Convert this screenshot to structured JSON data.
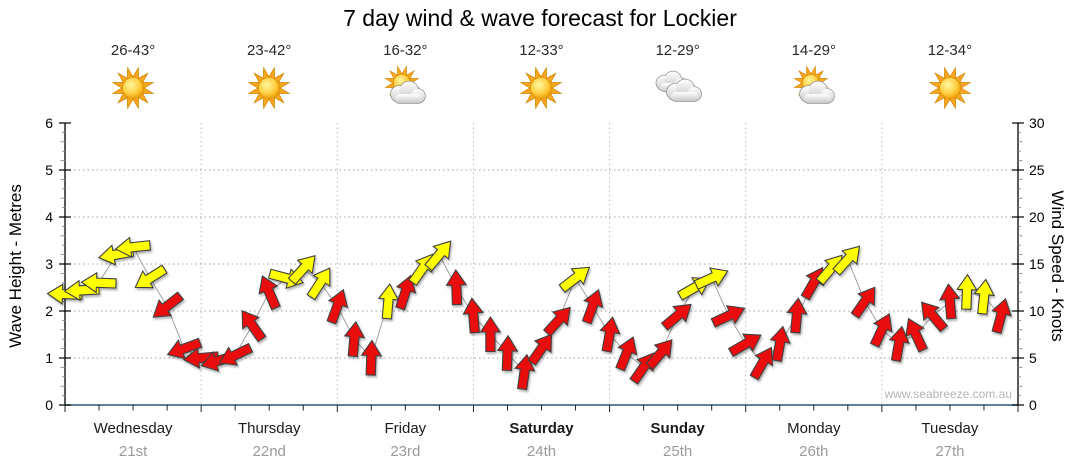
{
  "title": "7 day wind & wave forecast for Lockier",
  "watermark": "www.seabreeze.com.au",
  "days": [
    {
      "name": "Wednesday",
      "date": "21st",
      "temp": "26-43°",
      "icon": "sunny",
      "bold": false
    },
    {
      "name": "Thursday",
      "date": "22nd",
      "temp": "23-42°",
      "icon": "sunny",
      "bold": false
    },
    {
      "name": "Friday",
      "date": "23rd",
      "temp": "16-32°",
      "icon": "partly",
      "bold": false
    },
    {
      "name": "Saturday",
      "date": "24th",
      "temp": "12-33°",
      "icon": "sunny",
      "bold": true
    },
    {
      "name": "Sunday",
      "date": "25th",
      "temp": "12-29°",
      "icon": "cloudy",
      "bold": true
    },
    {
      "name": "Monday",
      "date": "26th",
      "temp": "14-29°",
      "icon": "partly",
      "bold": false
    },
    {
      "name": "Tuesday",
      "date": "27th",
      "temp": "12-34°",
      "icon": "sunny",
      "bold": false
    }
  ],
  "colors": {
    "arrow_yellow": "#ffff00",
    "arrow_red": "#ea0e0e",
    "arrow_outline": "#404040",
    "bottom_axis": "#29567a",
    "grid": "#a0a0a0",
    "date_text": "#9b9b9b",
    "watermark_text": "#b4b4b4"
  },
  "chart_data": {
    "type": "wind-arrows-time-series",
    "title": "7 day wind & wave forecast for Lockier",
    "x_axis": {
      "days": 7,
      "minor_tick_hours": 6,
      "gridlines_at_day_boundaries": true
    },
    "left_axis": {
      "label": "Wave Height - Metres",
      "min": 0,
      "max": 6,
      "major_ticks": [
        0,
        1,
        2,
        3,
        4,
        5,
        6
      ]
    },
    "right_axis": {
      "label": "Wind Speed - Knots",
      "min": 0,
      "max": 30,
      "major_ticks": [
        0,
        5,
        10,
        15,
        20,
        25,
        30
      ]
    },
    "grid": {
      "horizontal_dotted_at": [
        1,
        2,
        3,
        4,
        5
      ],
      "vertical_dotted": true
    },
    "arrows_format": [
      "hour_of_week",
      "wind_speed_knots",
      "direction_deg_ccw_from_east",
      "color_key"
    ],
    "arrow_colors": {
      "y": "#ffff00",
      "r": "#ea0e0e"
    },
    "arrows": [
      [
        0,
        11.8,
        178,
        "y"
      ],
      [
        3,
        12.2,
        183,
        "y"
      ],
      [
        6,
        13,
        178,
        "y"
      ],
      [
        9,
        16,
        190,
        "y"
      ],
      [
        12,
        16.8,
        186,
        "y"
      ],
      [
        15,
        13.5,
        212,
        "y"
      ],
      [
        18,
        10.5,
        218,
        "r"
      ],
      [
        21,
        6,
        200,
        "r"
      ],
      [
        24,
        5,
        185,
        "r"
      ],
      [
        27,
        4.7,
        196,
        "r"
      ],
      [
        30,
        5.3,
        206,
        "r"
      ],
      [
        33,
        8.5,
        125,
        "r"
      ],
      [
        36,
        12,
        113,
        "r"
      ],
      [
        39,
        13.5,
        345,
        "y"
      ],
      [
        42,
        14.5,
        48,
        "y"
      ],
      [
        45,
        13,
        57,
        "y"
      ],
      [
        48,
        10.5,
        70,
        "r"
      ],
      [
        51,
        7,
        85,
        "r"
      ],
      [
        54,
        5,
        88,
        "r"
      ],
      [
        57,
        11,
        85,
        "y"
      ],
      [
        60,
        12,
        72,
        "r"
      ],
      [
        63,
        14.5,
        55,
        "y"
      ],
      [
        66,
        16,
        50,
        "y"
      ],
      [
        69,
        12.5,
        92,
        "r"
      ],
      [
        72,
        9.5,
        95,
        "r"
      ],
      [
        75,
        7.5,
        90,
        "r"
      ],
      [
        78,
        5.5,
        88,
        "r"
      ],
      [
        81,
        3.5,
        82,
        "r"
      ],
      [
        84,
        6,
        55,
        "r"
      ],
      [
        87,
        9,
        48,
        "r"
      ],
      [
        90,
        13.5,
        38,
        "y"
      ],
      [
        93,
        10.5,
        70,
        "r"
      ],
      [
        96,
        7.5,
        80,
        "r"
      ],
      [
        99,
        5.5,
        68,
        "r"
      ],
      [
        102,
        4,
        55,
        "r"
      ],
      [
        105,
        5.5,
        50,
        "r"
      ],
      [
        108,
        9.5,
        40,
        "r"
      ],
      [
        111,
        12.5,
        30,
        "y"
      ],
      [
        114,
        13.5,
        24,
        "y"
      ],
      [
        117,
        9.5,
        25,
        "r"
      ],
      [
        120,
        6.5,
        30,
        "r"
      ],
      [
        123,
        4.5,
        60,
        "r"
      ],
      [
        126,
        6.5,
        80,
        "r"
      ],
      [
        129,
        9.5,
        85,
        "r"
      ],
      [
        132,
        13,
        60,
        "r"
      ],
      [
        135,
        14.5,
        50,
        "y"
      ],
      [
        138,
        15.5,
        48,
        "y"
      ],
      [
        141,
        11,
        55,
        "r"
      ],
      [
        144,
        8,
        65,
        "r"
      ],
      [
        147,
        6.5,
        80,
        "r"
      ],
      [
        150,
        7.5,
        115,
        "r"
      ],
      [
        153,
        9.5,
        130,
        "r"
      ],
      [
        156,
        11,
        95,
        "r"
      ],
      [
        159,
        12,
        88,
        "y"
      ],
      [
        162,
        11.5,
        84,
        "y"
      ],
      [
        165,
        9.5,
        75,
        "r"
      ]
    ]
  }
}
